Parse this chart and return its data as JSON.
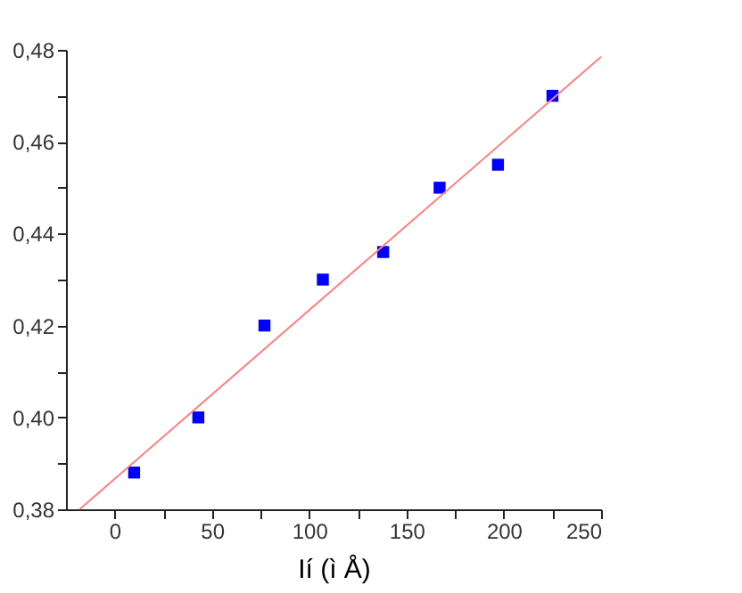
{
  "chart_data": {
    "type": "scatter",
    "xlabel": "Ií  (ì Å)",
    "marker": "square",
    "grid": false,
    "x": [
      10,
      43,
      77,
      107,
      138,
      167,
      197,
      225
    ],
    "series": [
      {
        "type": "scatter",
        "color": "#0000ff",
        "values": [
          0.388,
          0.4,
          0.42,
          0.43,
          0.436,
          0.45,
          0.455,
          0.47
        ]
      },
      {
        "type": "line",
        "color": "#ff8080",
        "x": [
          -18,
          250
        ],
        "values": [
          0.38,
          0.4785
        ],
        "marker": "none"
      }
    ],
    "xlim": [
      -25,
      250
    ],
    "xticks": [
      0,
      {
        "value": 25,
        "label": null
      },
      50,
      {
        "value": 75,
        "label": null
      },
      100,
      {
        "value": 125,
        "label": null
      },
      150,
      {
        "value": 175,
        "label": null
      },
      200,
      {
        "value": 225,
        "label": null
      },
      250
    ],
    "ylim": [
      0.38,
      0.48
    ],
    "yticks": [
      {
        "value": 0.38,
        "label": "0,38"
      },
      {
        "value": 0.39,
        "label": null
      },
      {
        "value": 0.4,
        "label": "0,40"
      },
      {
        "value": 0.41,
        "label": null
      },
      {
        "value": 0.42,
        "label": "0,42"
      },
      {
        "value": 0.43,
        "label": null
      },
      {
        "value": 0.44,
        "label": "0,44"
      },
      {
        "value": 0.45,
        "label": null
      },
      {
        "value": 0.46,
        "label": "0,46"
      },
      {
        "value": 0.47,
        "label": null
      },
      {
        "value": 0.48,
        "label": "0,48"
      }
    ]
  }
}
